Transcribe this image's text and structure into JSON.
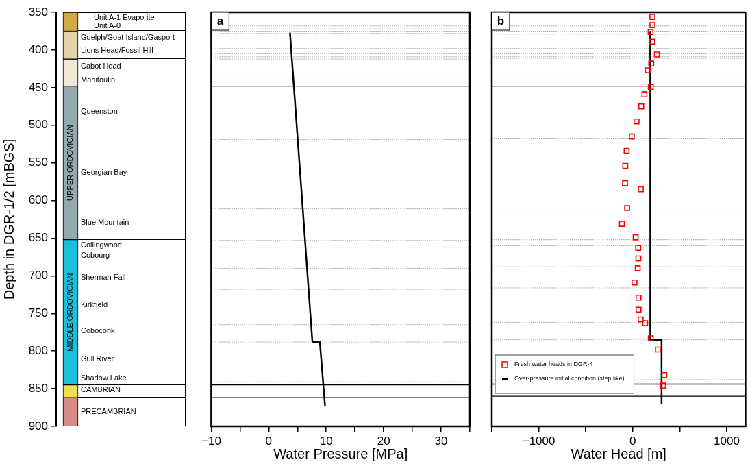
{
  "chart_data": [
    {
      "type": "bar",
      "ylabel": "Depth in DGR-1/2 [mBGS]",
      "categories": [
        null
      ],
      "ylim": [
        900,
        350
      ],
      "yticks": [
        350,
        400,
        450,
        500,
        550,
        600,
        650,
        700,
        750,
        800,
        850,
        900
      ],
      "tick_labels": "y",
      "series": [
        {
          "color": "#d4a843",
          "base": [
            350
          ],
          "values": [
            25
          ]
        },
        {
          "color": "#e5d3a7",
          "base": [
            375
          ],
          "values": [
            37
          ]
        },
        {
          "color": "#f1e7d4",
          "base": [
            412
          ],
          "values": [
            36
          ]
        },
        {
          "name": "UPPER ORDOVICIAN",
          "color": "#93a9b0",
          "base": [
            448
          ],
          "values": [
            204
          ]
        },
        {
          "name": "MIDDLE ORDOVICIAN",
          "color": "#19c0dc",
          "base": [
            652
          ],
          "values": [
            193
          ]
        },
        {
          "color": "#f0e050",
          "base": [
            845
          ],
          "values": [
            17
          ]
        },
        {
          "color": "#d68a88",
          "base": [
            862
          ],
          "values": [
            38
          ]
        }
      ],
      "annotations": [
        "Unit A-1 Evaporite",
        "Unit A-0",
        "Guelph/Goat Island/Gasport",
        "Lions Head/Fossil Hill",
        "Cabot Head",
        "Manitoulin",
        "Queenston",
        "Georgian Bay",
        "Blue Mountain",
        "Collingwood",
        "Cobourg",
        "Sherman Fall",
        "Kirkfield",
        "Coboconk",
        "Gull River",
        "Shadow Lake",
        "CAMBRIAN",
        "PRECAMBRIAN"
      ]
    },
    {
      "type": "line",
      "title": "a",
      "xlabel": "Water Pressure [MPa]",
      "xlim": [
        -10,
        35
      ],
      "ylim": [
        900,
        350
      ],
      "tick_labels": "x",
      "marker": "none",
      "xticks": [
        {
          "value": -10,
          "label": "−10"
        },
        {
          "value": -5,
          "label": null
        },
        0,
        {
          "value": 5,
          "label": null
        },
        10,
        {
          "value": 15,
          "label": null
        },
        20,
        {
          "value": 25,
          "label": null
        },
        30,
        {
          "value": 35,
          "label": null
        }
      ],
      "series": [
        {
          "type": "line",
          "color": "#000000",
          "x": [
            3.7,
            7.6,
            8.9,
            9.8
          ],
          "values": [
            377,
            788,
            788,
            873
          ]
        }
      ],
      "ref_lines": [
        {
          "axis": "y",
          "value": 368,
          "line_style": "dotted",
          "color": "#aaaaaa"
        },
        {
          "axis": "y",
          "value": 372,
          "line_style": "dotted",
          "color": "#aaaaaa"
        },
        {
          "axis": "y",
          "value": 375,
          "line_style": "dotted",
          "color": "#aaaaaa"
        },
        {
          "axis": "y",
          "value": 378,
          "line_style": "dotted",
          "color": "#aaaaaa"
        },
        {
          "axis": "y",
          "value": 398,
          "line_style": "dotted",
          "color": "#aaaaaa"
        },
        {
          "axis": "y",
          "value": 405,
          "line_style": "dotted",
          "color": "#aaaaaa"
        },
        {
          "axis": "y",
          "value": 409,
          "line_style": "dotted",
          "color": "#aaaaaa"
        },
        {
          "axis": "y",
          "value": 412,
          "line_style": "dotted",
          "color": "#aaaaaa"
        },
        {
          "axis": "y",
          "value": 436,
          "line_style": "dotted",
          "color": "#aaaaaa"
        },
        {
          "axis": "y",
          "value": 448,
          "line_style": "solid",
          "color": "#000000"
        },
        {
          "axis": "y",
          "value": 519,
          "line_style": "dotted",
          "color": "#aaaaaa"
        },
        {
          "axis": "y",
          "value": 611,
          "line_style": "dotted",
          "color": "#aaaaaa"
        },
        {
          "axis": "y",
          "value": 653,
          "line_style": "dotted",
          "color": "#aaaaaa"
        },
        {
          "axis": "y",
          "value": 662,
          "line_style": "dotted",
          "color": "#aaaaaa"
        },
        {
          "axis": "y",
          "value": 690,
          "line_style": "dotted",
          "color": "#aaaaaa"
        },
        {
          "axis": "y",
          "value": 718,
          "line_style": "dotted",
          "color": "#aaaaaa"
        },
        {
          "axis": "y",
          "value": 765,
          "line_style": "dotted",
          "color": "#aaaaaa"
        },
        {
          "axis": "y",
          "value": 788,
          "line_style": "dotted",
          "color": "#aaaaaa"
        },
        {
          "axis": "y",
          "value": 841,
          "line_style": "dotted",
          "color": "#aaaaaa"
        },
        {
          "axis": "y",
          "value": 845,
          "line_style": "solid",
          "color": "#000000"
        },
        {
          "axis": "y",
          "value": 862,
          "line_style": "solid",
          "color": "#000000"
        }
      ]
    },
    {
      "type": "scatter",
      "title": "b",
      "xlabel": "Water Head [m]",
      "xlim": [
        -1500,
        1200
      ],
      "ylim": [
        900,
        350
      ],
      "tick_labels": "x",
      "legend": "bottom left",
      "xticks": [
        {
          "value": -1500,
          "label": null
        },
        {
          "value": -1000,
          "label": "−1000"
        },
        {
          "value": -500,
          "label": null
        },
        0,
        {
          "value": 500,
          "label": null
        },
        1000
      ],
      "series": [
        {
          "type": "scatter",
          "name": "Fresh water heads in DGR-4",
          "color": "#ff0000",
          "marker": "square",
          "x": [
            209,
            209,
            190,
            207,
            257,
            197,
            161,
            192,
            125,
            91,
            41,
            -10,
            -65,
            -79,
            -82,
            86,
            -60,
            -115,
            31,
            58,
            60,
            53,
            19,
            62,
            62,
            84,
            132,
            192,
            267,
            336,
            322
          ],
          "values": [
            356,
            367,
            376,
            389,
            406,
            418,
            427,
            449,
            459,
            475,
            495,
            515,
            534,
            554,
            577,
            585,
            610,
            631,
            649,
            663,
            677,
            690,
            709,
            729,
            745,
            758,
            763,
            783,
            798,
            832,
            846
          ]
        },
        {
          "type": "line",
          "name": "Over-pressure initial condition (step like)",
          "color": "#000000",
          "marker": "none",
          "x": [
            187,
            187,
            307,
            307
          ],
          "values": [
            376,
            785,
            785,
            870
          ]
        }
      ],
      "ref_lines": [
        {
          "axis": "y",
          "value": 368,
          "line_style": "dotted",
          "color": "#aaaaaa"
        },
        {
          "axis": "y",
          "value": 375,
          "line_style": "dotted",
          "color": "#aaaaaa"
        },
        {
          "axis": "y",
          "value": 379,
          "line_style": "dotted",
          "color": "#aaaaaa"
        },
        {
          "axis": "y",
          "value": 398,
          "line_style": "dotted",
          "color": "#aaaaaa"
        },
        {
          "axis": "y",
          "value": 405,
          "line_style": "dotted",
          "color": "#aaaaaa"
        },
        {
          "axis": "y",
          "value": 409,
          "line_style": "dotted",
          "color": "#aaaaaa"
        },
        {
          "axis": "y",
          "value": 411,
          "line_style": "dotted",
          "color": "#aaaaaa"
        },
        {
          "axis": "y",
          "value": 436,
          "line_style": "dotted",
          "color": "#aaaaaa"
        },
        {
          "axis": "y",
          "value": 448,
          "line_style": "solid",
          "color": "#000000"
        },
        {
          "axis": "y",
          "value": 518,
          "line_style": "dotted",
          "color": "#aaaaaa"
        },
        {
          "axis": "y",
          "value": 610,
          "line_style": "dotted",
          "color": "#aaaaaa"
        },
        {
          "axis": "y",
          "value": 652,
          "line_style": "dotted",
          "color": "#aaaaaa"
        },
        {
          "axis": "y",
          "value": 660,
          "line_style": "dotted",
          "color": "#aaaaaa"
        },
        {
          "axis": "y",
          "value": 688,
          "line_style": "dotted",
          "color": "#aaaaaa"
        },
        {
          "axis": "y",
          "value": 716,
          "line_style": "dotted",
          "color": "#aaaaaa"
        },
        {
          "axis": "y",
          "value": 762,
          "line_style": "dotted",
          "color": "#aaaaaa"
        },
        {
          "axis": "y",
          "value": 785,
          "line_style": "dotted",
          "color": "#aaaaaa"
        },
        {
          "axis": "y",
          "value": 838,
          "line_style": "dotted",
          "color": "#aaaaaa"
        },
        {
          "axis": "y",
          "value": 844,
          "line_style": "solid",
          "color": "#000000"
        },
        {
          "axis": "y",
          "value": 860,
          "line_style": "solid",
          "color": "#000000"
        }
      ]
    }
  ]
}
